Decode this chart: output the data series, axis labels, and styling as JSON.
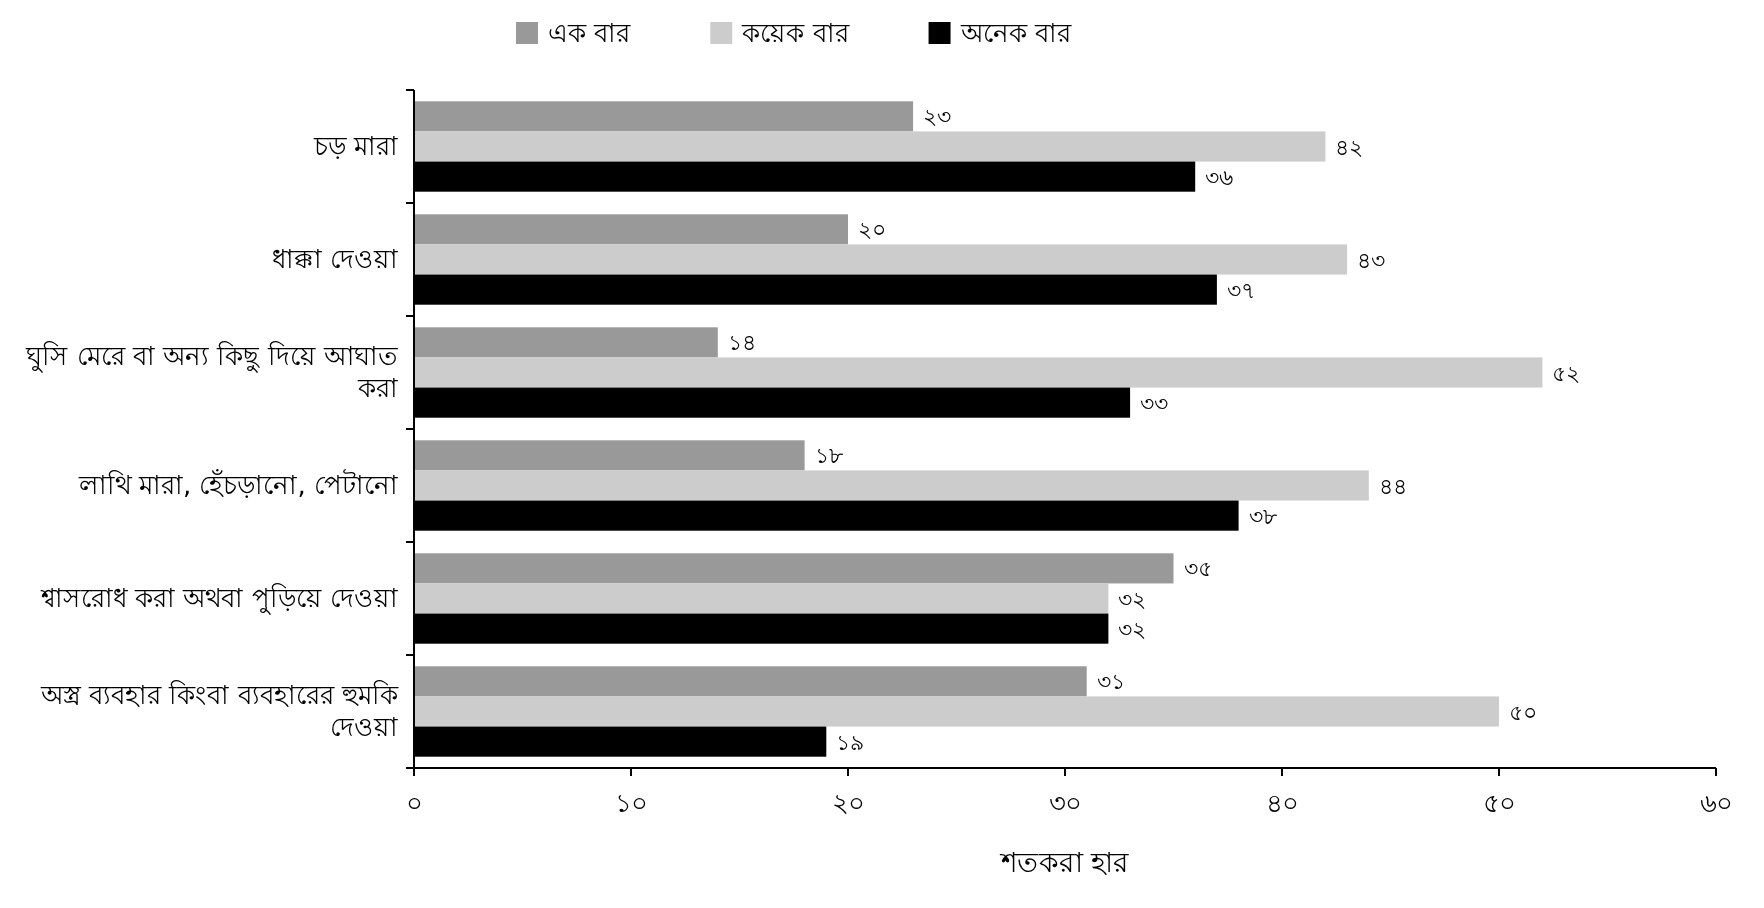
{
  "chart_data": {
    "type": "bar",
    "orientation": "horizontal",
    "xlabel": "শতকরা হার",
    "categories": [
      "চড় মারা",
      "ধাক্কা দেওয়া",
      "ঘুসি মেরে বা অন্য কিছু দিয়ে আঘাত করা",
      "লাথি মারা, হেঁচড়ানো, পেটানো",
      "শ্বাসরোধ করা অথবা পুড়িয়ে দেওয়া",
      "অস্ত্র ব্যবহার কিংবা ব্যবহারের হুমকি দেওয়া"
    ],
    "series": [
      {
        "name": "এক বার",
        "color": "#999999",
        "values": [
          23,
          20,
          14,
          18,
          35,
          31
        ],
        "value_labels": [
          "২৩",
          "২০",
          "১৪",
          "১৮",
          "৩৫",
          "৩১"
        ]
      },
      {
        "name": "কয়েক বার",
        "color": "#cccccc",
        "values": [
          42,
          43,
          52,
          44,
          32,
          50
        ],
        "value_labels": [
          "৪২",
          "৪৩",
          "৫২",
          "৪৪",
          "৩২",
          "৫০"
        ]
      },
      {
        "name": "অনেক বার",
        "color": "#000000",
        "values": [
          36,
          37,
          33,
          38,
          32,
          19
        ],
        "value_labels": [
          "৩৬",
          "৩৭",
          "৩৩",
          "৩৮",
          "৩২",
          "১৯"
        ]
      }
    ],
    "xlim": [
      0,
      60
    ],
    "xticks": [
      {
        "value": 0,
        "label": "০"
      },
      {
        "value": 10,
        "label": "১০"
      },
      {
        "value": 20,
        "label": "২০"
      },
      {
        "value": 30,
        "label": "৩০"
      },
      {
        "value": 40,
        "label": "৪০"
      },
      {
        "value": 50,
        "label": "৫০"
      },
      {
        "value": 60,
        "label": "৬০"
      }
    ],
    "legend": "top",
    "grid": false
  }
}
